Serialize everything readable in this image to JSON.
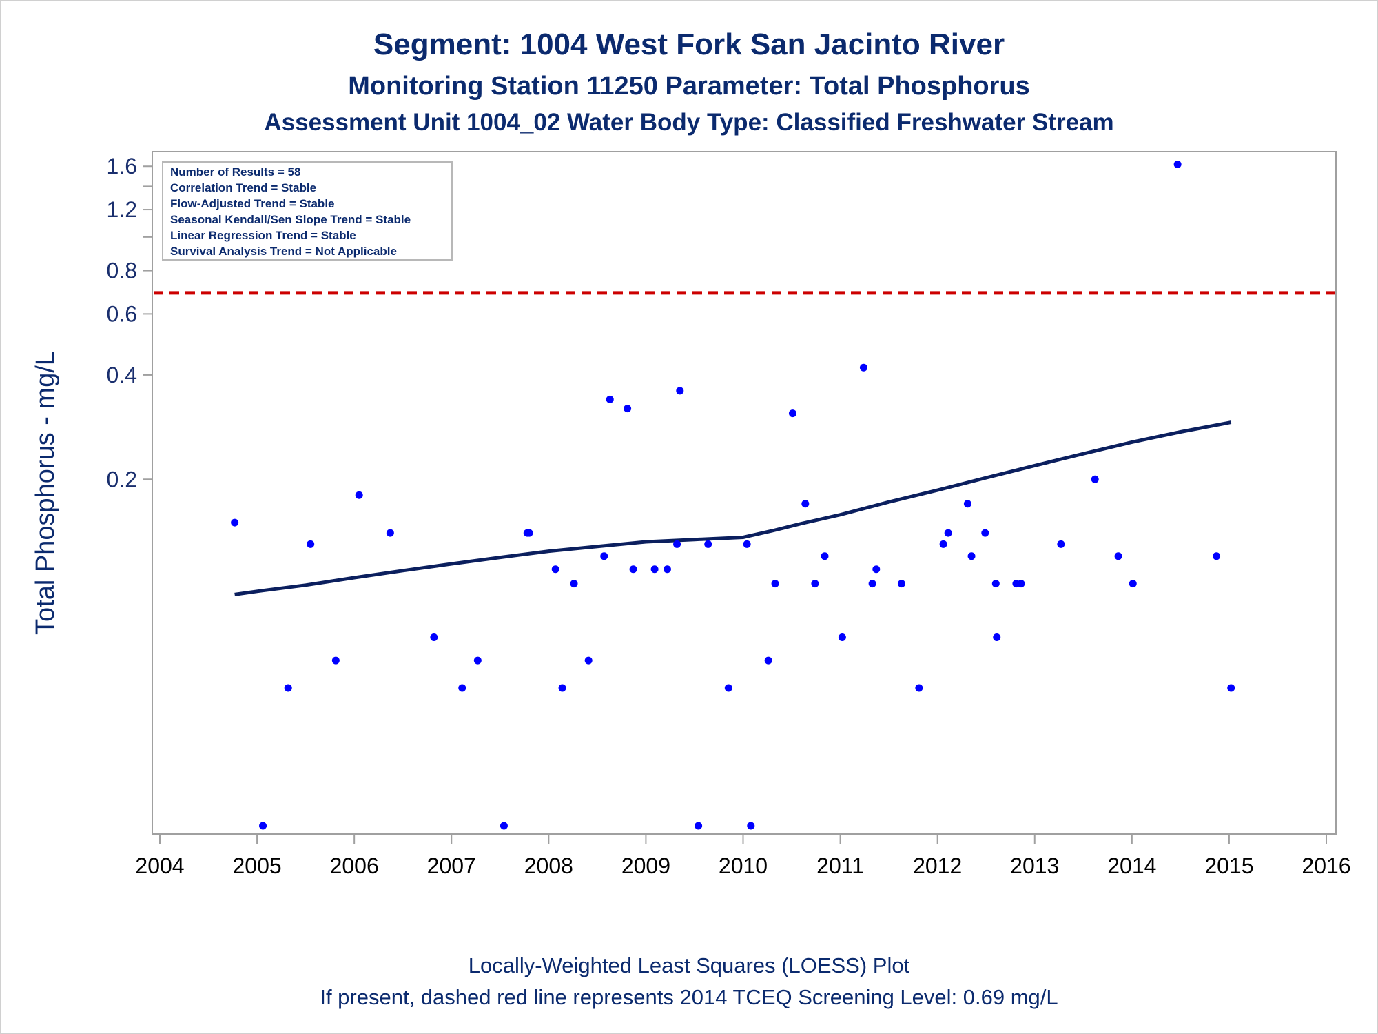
{
  "chart_data": {
    "type": "scatter",
    "title": "Segment: 1004  West Fork San Jacinto River",
    "subtitle": "Monitoring Station 11250 Parameter: Total Phosphorus",
    "subtitle2": "Assessment Unit 1004_02   Water Body Type: Classified Freshwater Stream",
    "xlabel": "",
    "ylabel": "Total Phosphorus - mg/L",
    "xlim": [
      2004,
      2016
    ],
    "ylim": [
      0.02,
      1.7
    ],
    "yscale": "log",
    "y_ticks": [
      0.2,
      0.4,
      0.6,
      0.8,
      1.2,
      1.6
    ],
    "y_tick_labels": [
      "0.2",
      "0.4",
      "0.6",
      "0.8",
      "1.2",
      "1.6"
    ],
    "y_minor_ticks": [
      1.0,
      1.4
    ],
    "x_ticks": [
      2004,
      2005,
      2006,
      2007,
      2008,
      2009,
      2010,
      2011,
      2012,
      2013,
      2014,
      2015,
      2016
    ],
    "x_tick_labels": [
      "2004",
      "2005",
      "2006",
      "2007",
      "2008",
      "2009",
      "2010",
      "2011",
      "2012",
      "2013",
      "2014",
      "2015",
      "2016"
    ],
    "grid": false,
    "legend_placement": "top-left",
    "legend_lines": [
      "Number of Results = 58",
      "Correlation Trend = Stable",
      "Flow-Adjusted Trend = Stable",
      "Seasonal Kendall/Sen Slope Trend = Stable",
      "Linear Regression Trend = Stable",
      "Survival Analysis Trend = Not Applicable"
    ],
    "screening_level": 0.69,
    "points": [
      {
        "x": 2004.77,
        "y": 0.15
      },
      {
        "x": 2005.06,
        "y": 0.02
      },
      {
        "x": 2005.32,
        "y": 0.05
      },
      {
        "x": 2005.55,
        "y": 0.13
      },
      {
        "x": 2005.81,
        "y": 0.06
      },
      {
        "x": 2006.05,
        "y": 0.18
      },
      {
        "x": 2006.37,
        "y": 0.14
      },
      {
        "x": 2006.82,
        "y": 0.07
      },
      {
        "x": 2007.11,
        "y": 0.05
      },
      {
        "x": 2007.27,
        "y": 0.06
      },
      {
        "x": 2007.54,
        "y": 0.02
      },
      {
        "x": 2007.78,
        "y": 0.14
      },
      {
        "x": 2007.8,
        "y": 0.14
      },
      {
        "x": 2008.07,
        "y": 0.11
      },
      {
        "x": 2008.14,
        "y": 0.05
      },
      {
        "x": 2008.26,
        "y": 0.1
      },
      {
        "x": 2008.41,
        "y": 0.06
      },
      {
        "x": 2008.57,
        "y": 0.12
      },
      {
        "x": 2008.63,
        "y": 0.34
      },
      {
        "x": 2008.81,
        "y": 0.32
      },
      {
        "x": 2008.87,
        "y": 0.11
      },
      {
        "x": 2009.09,
        "y": 0.11
      },
      {
        "x": 2009.22,
        "y": 0.11
      },
      {
        "x": 2009.32,
        "y": 0.13
      },
      {
        "x": 2009.35,
        "y": 0.36
      },
      {
        "x": 2009.54,
        "y": 0.02
      },
      {
        "x": 2009.64,
        "y": 0.13
      },
      {
        "x": 2009.85,
        "y": 0.05
      },
      {
        "x": 2010.04,
        "y": 0.13
      },
      {
        "x": 2010.08,
        "y": 0.02
      },
      {
        "x": 2010.26,
        "y": 0.06
      },
      {
        "x": 2010.33,
        "y": 0.1
      },
      {
        "x": 2010.51,
        "y": 0.31
      },
      {
        "x": 2010.64,
        "y": 0.17
      },
      {
        "x": 2010.74,
        "y": 0.1
      },
      {
        "x": 2010.84,
        "y": 0.12
      },
      {
        "x": 2011.02,
        "y": 0.07
      },
      {
        "x": 2011.24,
        "y": 0.42
      },
      {
        "x": 2011.33,
        "y": 0.1
      },
      {
        "x": 2011.37,
        "y": 0.11
      },
      {
        "x": 2011.63,
        "y": 0.1
      },
      {
        "x": 2011.81,
        "y": 0.05
      },
      {
        "x": 2012.06,
        "y": 0.13
      },
      {
        "x": 2012.11,
        "y": 0.14
      },
      {
        "x": 2012.31,
        "y": 0.17
      },
      {
        "x": 2012.35,
        "y": 0.12
      },
      {
        "x": 2012.49,
        "y": 0.14
      },
      {
        "x": 2012.6,
        "y": 0.1
      },
      {
        "x": 2012.61,
        "y": 0.07
      },
      {
        "x": 2012.81,
        "y": 0.1
      },
      {
        "x": 2012.86,
        "y": 0.1
      },
      {
        "x": 2013.27,
        "y": 0.13
      },
      {
        "x": 2013.62,
        "y": 0.2
      },
      {
        "x": 2013.86,
        "y": 0.12
      },
      {
        "x": 2014.01,
        "y": 0.1
      },
      {
        "x": 2014.47,
        "y": 1.62
      },
      {
        "x": 2014.87,
        "y": 0.12
      },
      {
        "x": 2015.02,
        "y": 0.05
      }
    ],
    "loess": [
      {
        "x": 2004.77,
        "y": 0.093
      },
      {
        "x": 2005.0,
        "y": 0.095
      },
      {
        "x": 2005.5,
        "y": 0.099
      },
      {
        "x": 2006.0,
        "y": 0.104
      },
      {
        "x": 2006.5,
        "y": 0.109
      },
      {
        "x": 2007.0,
        "y": 0.114
      },
      {
        "x": 2007.5,
        "y": 0.119
      },
      {
        "x": 2008.0,
        "y": 0.124
      },
      {
        "x": 2008.5,
        "y": 0.128
      },
      {
        "x": 2009.0,
        "y": 0.132
      },
      {
        "x": 2009.5,
        "y": 0.134
      },
      {
        "x": 2010.0,
        "y": 0.136
      },
      {
        "x": 2010.3,
        "y": 0.142
      },
      {
        "x": 2010.6,
        "y": 0.149
      },
      {
        "x": 2011.0,
        "y": 0.158
      },
      {
        "x": 2011.5,
        "y": 0.172
      },
      {
        "x": 2012.0,
        "y": 0.186
      },
      {
        "x": 2012.5,
        "y": 0.202
      },
      {
        "x": 2013.0,
        "y": 0.219
      },
      {
        "x": 2013.5,
        "y": 0.237
      },
      {
        "x": 2014.0,
        "y": 0.256
      },
      {
        "x": 2014.5,
        "y": 0.274
      },
      {
        "x": 2015.02,
        "y": 0.292
      }
    ],
    "colors": {
      "points": "#0000ff",
      "loess": "#0b1f5e",
      "screening_line": "#cc0000",
      "axis": "#a0a0a0",
      "text": "#0b2a6e"
    }
  },
  "footer": {
    "line1": "Locally-Weighted Least Squares (LOESS) Plot",
    "line2": "If present, dashed red line represents 2014 TCEQ Screening Level: 0.69 mg/L"
  }
}
